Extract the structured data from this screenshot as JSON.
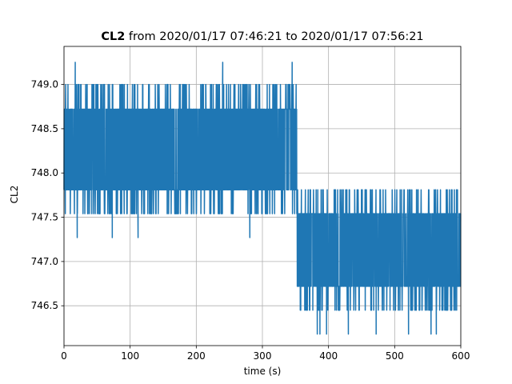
{
  "chart_data": {
    "type": "line",
    "title": {
      "bold_part": "CL2",
      "rest": " from 2020/01/17 07:46:21 to 2020/01/17 07:56:21"
    },
    "xlabel": "time (s)",
    "ylabel": "CL2",
    "xlim": [
      0,
      600
    ],
    "ylim": [
      746.05,
      749.43
    ],
    "xticks": [
      0,
      100,
      200,
      300,
      400,
      500,
      600
    ],
    "xtick_labels": [
      "0",
      "100",
      "200",
      "300",
      "400",
      "500",
      "600"
    ],
    "yticks": [
      746.5,
      747.0,
      747.5,
      748.0,
      748.5,
      749.0
    ],
    "ytick_labels": [
      "746.5",
      "747.0",
      "747.5",
      "748.0",
      "748.5",
      "749.0"
    ],
    "grid": true,
    "line_color": "#1f77b4",
    "series": [
      {
        "segments": [
          {
            "x_range": [
              0,
              352
            ],
            "band_levels": [
              747.81,
              748.72
            ],
            "occasional_levels": [
              747.54,
              749.0
            ],
            "spikes": [
              {
                "x": 2,
                "y": 747.54
              },
              {
                "x": 17,
                "y": 749.25
              },
              {
                "x": 20,
                "y": 747.27
              },
              {
                "x": 73,
                "y": 747.27
              },
              {
                "x": 112,
                "y": 747.27
              },
              {
                "x": 240,
                "y": 749.25
              },
              {
                "x": 281,
                "y": 747.27
              },
              {
                "x": 345,
                "y": 749.25
              }
            ]
          },
          {
            "x_range": [
              352,
              600
            ],
            "band_levels": [
              746.72,
              747.54
            ],
            "occasional_levels": [
              746.45,
              747.81
            ],
            "spikes": [
              {
                "x": 358,
                "y": 746.45
              },
              {
                "x": 383,
                "y": 746.18
              },
              {
                "x": 387,
                "y": 746.18
              },
              {
                "x": 397,
                "y": 746.18
              },
              {
                "x": 430,
                "y": 746.18
              },
              {
                "x": 472,
                "y": 746.18
              },
              {
                "x": 521,
                "y": 746.18
              },
              {
                "x": 555,
                "y": 746.18
              },
              {
                "x": 563,
                "y": 746.18
              }
            ]
          }
        ]
      }
    ]
  }
}
